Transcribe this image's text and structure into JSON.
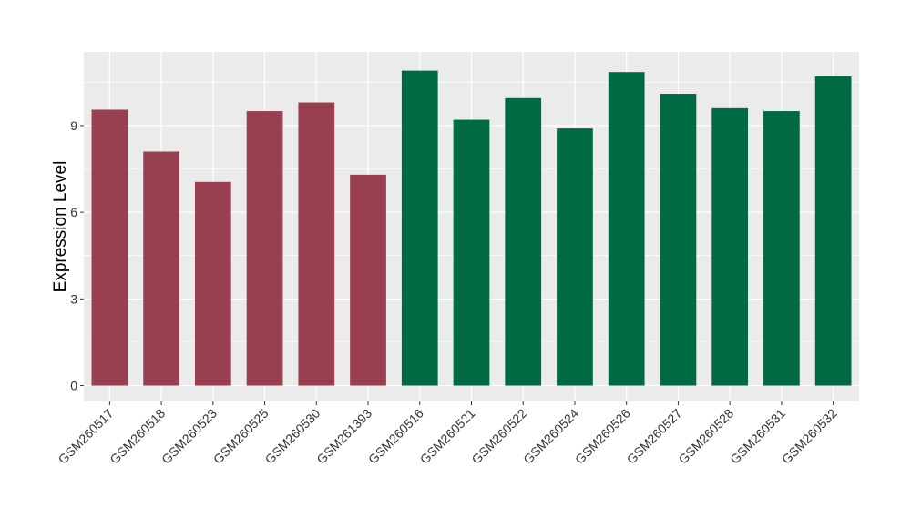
{
  "chart_data": {
    "type": "bar",
    "title": "",
    "xlabel": "",
    "ylabel": "Expression Level",
    "ylim": [
      -0.55,
      11.55
    ],
    "yticks": [
      0,
      3,
      6,
      9
    ],
    "grid": true,
    "legend": "none",
    "categories": [
      "GSM260517",
      "GSM260518",
      "GSM260523",
      "GSM260525",
      "GSM260530",
      "GSM261393",
      "GSM260516",
      "GSM260521",
      "GSM260522",
      "GSM260524",
      "GSM260526",
      "GSM260527",
      "GSM260528",
      "GSM260531",
      "GSM260532"
    ],
    "values": [
      9.55,
      8.1,
      7.05,
      9.5,
      9.8,
      7.3,
      10.9,
      9.2,
      9.95,
      8.9,
      10.85,
      10.1,
      9.6,
      9.5,
      10.7
    ],
    "groups": [
      0,
      0,
      0,
      0,
      0,
      0,
      1,
      1,
      1,
      1,
      1,
      1,
      1,
      1,
      1
    ],
    "group_colors": [
      "#98404f",
      "#006a43"
    ]
  },
  "colors": {
    "panel_background": "#ebebeb",
    "grid_major": "#ffffff",
    "axis_text": "#333333"
  }
}
